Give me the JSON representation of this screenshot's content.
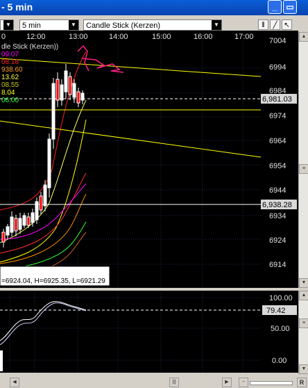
{
  "window": {
    "title": "- 5 min",
    "min_icon": "minimize-icon",
    "max_icon": "maximize-icon"
  },
  "toolbar": {
    "interval_value": "5 min",
    "chart_type_value": "Candle Stick (Kerzen)",
    "tools": [
      "bar-tool-icon",
      "line-tool-icon",
      "cursor-tool-icon"
    ]
  },
  "chart": {
    "time_labels": [
      "12:00",
      "13:00",
      "14:00",
      "15:00",
      "16:00",
      "17:00"
    ],
    "price_labels": [
      "6994",
      "6984",
      "6974",
      "6964",
      "6954",
      "6944",
      "6934",
      "6924",
      "6914"
    ],
    "current_price": "6,981.03",
    "crosshair_price": "6,938.28",
    "legend_title": "dle Stick (Kerzen))",
    "legend_values": [
      "09.07",
      "08.18",
      "938.60",
      "13.62",
      "08.55",
      "8.04",
      "06.00"
    ],
    "legend_colors": [
      "#ff00ff",
      "#ff2020",
      "#ff9a20",
      "#ffff40",
      "#c8c820",
      "#ffff00",
      "#40ff40"
    ],
    "info_text": "=6924.04, H=6925.35, L=6921.29",
    "top_cut_label": "7004"
  },
  "oscillator": {
    "labels": [
      "100.00",
      "50.00",
      "0.00"
    ],
    "current_value": "79.42"
  },
  "scrollbar": {
    "left_label": "R"
  }
}
